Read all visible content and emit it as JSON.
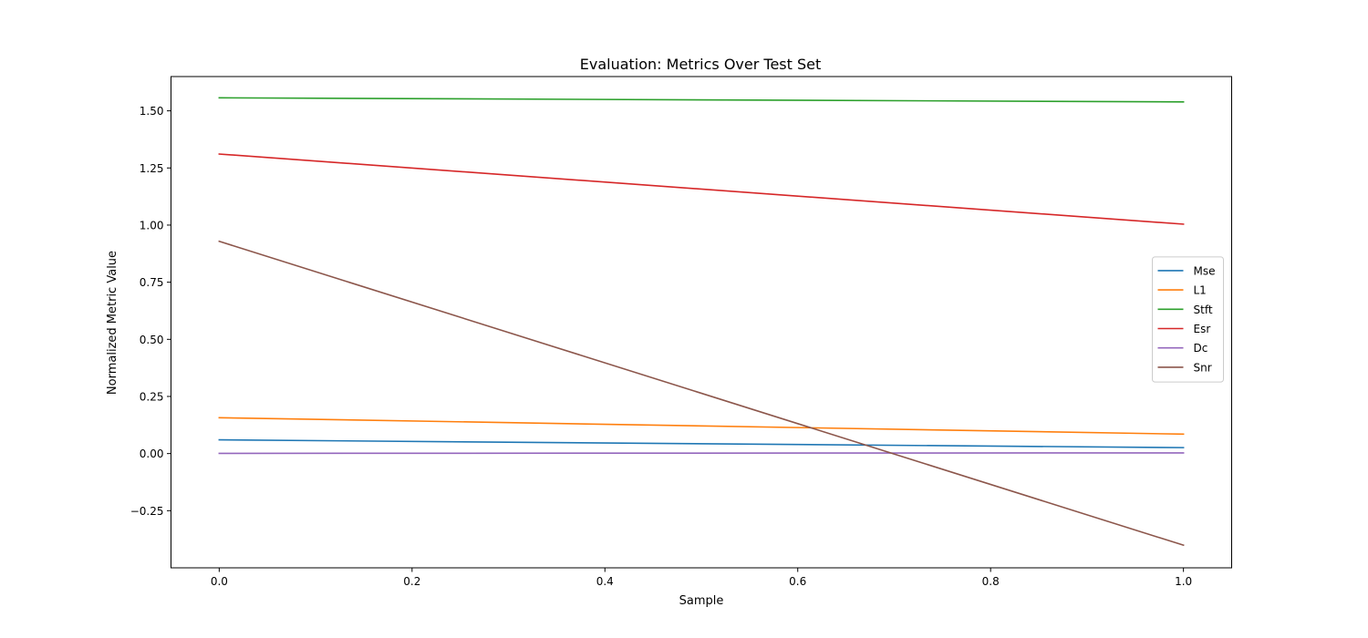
{
  "chart_data": {
    "type": "line",
    "title": "Evaluation: Metrics Over Test Set",
    "xlabel": "Sample",
    "ylabel": "Normalized Metric Value",
    "xlim": [
      -0.05,
      1.05
    ],
    "ylim": [
      -0.5,
      1.65
    ],
    "xticks": [
      0.0,
      0.2,
      0.4,
      0.6,
      0.8,
      1.0
    ],
    "xtick_labels": [
      "0.0",
      "0.2",
      "0.4",
      "0.6",
      "0.8",
      "1.0"
    ],
    "yticks": [
      -0.25,
      0.0,
      0.25,
      0.5,
      0.75,
      1.0,
      1.25,
      1.5
    ],
    "ytick_labels": [
      "−0.25",
      "0.00",
      "0.25",
      "0.50",
      "0.75",
      "1.00",
      "1.25",
      "1.50"
    ],
    "grid": false,
    "legend_position": "center-right",
    "x": [
      0.0,
      1.0
    ],
    "series": [
      {
        "name": "Mse",
        "color": "#1f77b4",
        "values": [
          0.06,
          0.026
        ]
      },
      {
        "name": "L1",
        "color": "#ff7f0e",
        "values": [
          0.157,
          0.085
        ]
      },
      {
        "name": "Stft",
        "color": "#2ca02c",
        "values": [
          1.557,
          1.539
        ]
      },
      {
        "name": "Esr",
        "color": "#d62728",
        "values": [
          1.311,
          1.004
        ]
      },
      {
        "name": "Dc",
        "color": "#9467bd",
        "values": [
          0.001,
          0.003
        ]
      },
      {
        "name": "Snr",
        "color": "#8c564b",
        "values": [
          0.929,
          -0.401
        ]
      }
    ]
  }
}
